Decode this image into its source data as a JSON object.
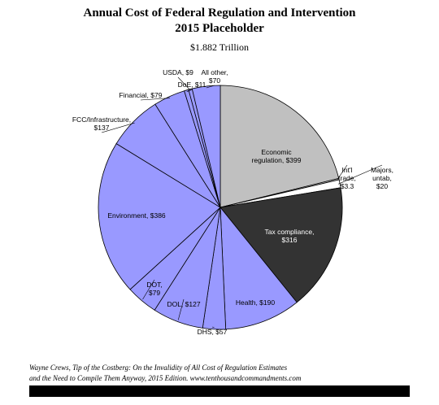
{
  "chart_data": {
    "type": "pie",
    "title": "Annual Cost of Federal Regulation and Intervention",
    "subtitle": "2015 Placeholder",
    "total": "$1.882 Trillion",
    "slices": [
      {
        "label": "Economic regulation, $399",
        "value": 399,
        "color": "#c0c0c0"
      },
      {
        "label": "Int'l trade, $3.3",
        "value": 3.3,
        "color": "#c0c0c0"
      },
      {
        "label": "Majors, untab, $20",
        "value": 20,
        "color": "#ffffff"
      },
      {
        "label": "Tax compliance, $316",
        "value": 316,
        "color": "#333333"
      },
      {
        "label": "Health, $190",
        "value": 190,
        "color": "#9999ff"
      },
      {
        "label": "DHS, $57",
        "value": 57,
        "color": "#9999ff"
      },
      {
        "label": "DOL, $127",
        "value": 127,
        "color": "#9999ff"
      },
      {
        "label": "DOT, $79",
        "value": 79,
        "color": "#9999ff"
      },
      {
        "label": "Environment, $386",
        "value": 386,
        "color": "#9999ff"
      },
      {
        "label": "FCC/Infrastructure, $137",
        "value": 137,
        "color": "#9999ff"
      },
      {
        "label": "Financial, $79",
        "value": 79,
        "color": "#9999ff"
      },
      {
        "label": "DoE, $11",
        "value": 11,
        "color": "#9999ff"
      },
      {
        "label": "USDA, $9",
        "value": 9,
        "color": "#9999ff"
      },
      {
        "label": "All other, $70",
        "value": 70,
        "color": "#9999ff"
      }
    ]
  },
  "labels": {
    "economic": [
      "Economic",
      "regulation, $399"
    ],
    "intl": [
      "Int'l",
      "trade,",
      "$3.3"
    ],
    "majors": [
      "Majors,",
      "untab,",
      "$20"
    ],
    "tax": [
      "Tax compliance,",
      "$316"
    ],
    "health": [
      "Health, $190"
    ],
    "dhs": [
      "DHS, $57"
    ],
    "dol": [
      "DOL, $127"
    ],
    "dot": [
      "DOT,",
      "$79"
    ],
    "environment": [
      "Environment, $386"
    ],
    "fcc": [
      "FCC/Infrastructure,",
      "$137"
    ],
    "financial": [
      "Financial, $79"
    ],
    "doe": [
      "DoE, $11"
    ],
    "usda": [
      "USDA, $9"
    ],
    "allother": [
      "All other,",
      "$70"
    ]
  },
  "source": {
    "line1": "Wayne Crews, Tip of the Costberg: On the Invalidity of All Cost of Regulation Estimates",
    "line2": "and the Need to Compile Them Anyway, 2015 Edition. www.tenthousandcommandments.com"
  }
}
